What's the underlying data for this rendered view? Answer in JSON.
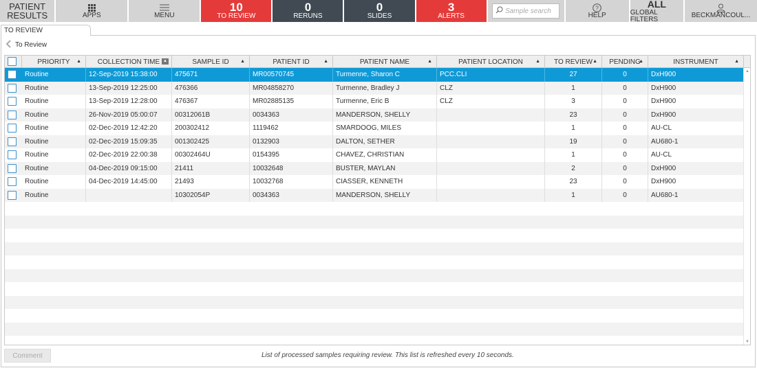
{
  "app": {
    "title_line1": "PATIENT",
    "title_line2": "RESULTS"
  },
  "topbar": {
    "apps_label": "APPS",
    "menu_label": "MENU",
    "to_review": {
      "count": "10",
      "label": "TO REVIEW"
    },
    "reruns": {
      "count": "0",
      "label": "RERUNS"
    },
    "slides": {
      "count": "0",
      "label": "SLIDES"
    },
    "alerts": {
      "count": "3",
      "label": "ALERTS"
    },
    "search": {
      "placeholder": "Sample search",
      "value": ""
    },
    "help_label": "HELP",
    "global_filters": {
      "value": "ALL",
      "label": "GLOBAL FILTERS"
    },
    "user_label": "BECKMANCOUL..."
  },
  "tab": {
    "label": "TO REVIEW"
  },
  "breadcrumb": {
    "label": "To Review"
  },
  "grid": {
    "columns": [
      "PRIORITY",
      "COLLECTION TIME",
      "SAMPLE ID",
      "PATIENT ID",
      "PATIENT NAME",
      "PATIENT LOCATION",
      "TO REVIEW",
      "PENDING",
      "INSTRUMENT"
    ],
    "rows": [
      [
        "Routine",
        "12-Sep-2019  15:38:00",
        "475671",
        "MR00570745",
        "Turmenne, Sharon C",
        "PCC.CLI",
        "27",
        "0",
        "DxH900"
      ],
      [
        "Routine",
        "13-Sep-2019  12:25:00",
        "476366",
        "MR04858270",
        "Turmenne, Bradley J",
        "CLZ",
        "1",
        "0",
        "DxH900"
      ],
      [
        "Routine",
        "13-Sep-2019  12:28:00",
        "476367",
        "MR02885135",
        "Turmenne, Eric B",
        "CLZ",
        "3",
        "0",
        "DxH900"
      ],
      [
        "Routine",
        "26-Nov-2019  05:00:07",
        "00312061B",
        "0034363",
        "MANDERSON, SHELLY",
        "",
        "23",
        "0",
        "DxH900"
      ],
      [
        "Routine",
        "02-Dec-2019  12:42:20",
        "200302412",
        "1119462",
        "SMARDOOG, MILES",
        "",
        "1",
        "0",
        "AU-CL"
      ],
      [
        "Routine",
        "02-Dec-2019  15:09:35",
        "001302425",
        "0132903",
        "DALTON, SETHER",
        "",
        "19",
        "0",
        "AU680-1"
      ],
      [
        "Routine",
        "02-Dec-2019  22:00:38",
        "00302464U",
        "0154395",
        "CHAVEZ, CHRISTIAN",
        "",
        "1",
        "0",
        "AU-CL"
      ],
      [
        "Routine",
        "04-Dec-2019  09:15:00",
        "21411",
        "10032648",
        "BUSTER, MAYLAN",
        "",
        "2",
        "0",
        "DxH900"
      ],
      [
        "Routine",
        "04-Dec-2019  14:45:00",
        "21493",
        "10032768",
        "CIASSER, KENNETH",
        "",
        "23",
        "0",
        "DxH900"
      ],
      [
        "Routine",
        "",
        "10302054P",
        "0034363",
        "MANDERSON, SHELLY",
        "",
        "1",
        "0",
        "AU680-1"
      ]
    ],
    "selected_row": 0,
    "empty_rows": 10
  },
  "footer": {
    "comment_label": "Comment",
    "note": "List of processed samples requiring review. This list is refreshed every 10 seconds."
  },
  "colors": {
    "red": "#e43b3a",
    "dark": "#414a53",
    "selected": "#0f9ad7",
    "button_gray": "#d4d4d4"
  }
}
